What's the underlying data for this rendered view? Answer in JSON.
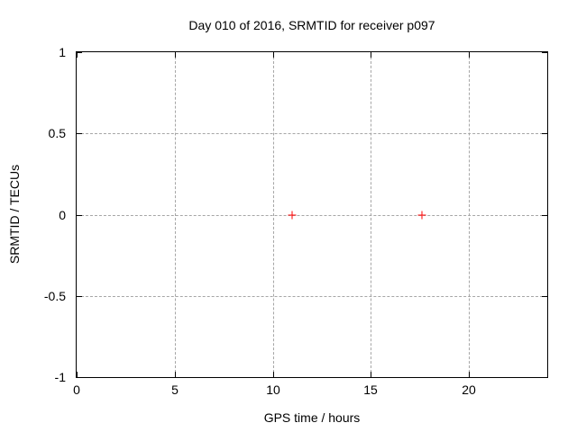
{
  "window": {
    "background": "#ffffff"
  },
  "chart_data": {
    "type": "scatter",
    "title": "Day 010 of 2016, SRMTID for receiver p097",
    "xlabel": "GPS time / hours",
    "ylabel": "SRMTID / TECUs",
    "xlim": [
      0,
      24
    ],
    "ylim": [
      -1,
      1
    ],
    "xticks": [
      {
        "value": 0,
        "label": "0"
      },
      {
        "value": 5,
        "label": "5"
      },
      {
        "value": 10,
        "label": "10"
      },
      {
        "value": 15,
        "label": "15"
      },
      {
        "value": 20,
        "label": "20"
      }
    ],
    "yticks": [
      {
        "value": -1,
        "label": "-1"
      },
      {
        "value": -0.5,
        "label": "-0.5"
      },
      {
        "value": 0,
        "label": "0"
      },
      {
        "value": 0.5,
        "label": "0.5"
      },
      {
        "value": 1,
        "label": "1"
      }
    ],
    "grid": true,
    "legend_position": "none",
    "series": [
      {
        "name": "SRMTID",
        "marker": "plus",
        "color": "#ff0000",
        "points": [
          {
            "x": 11.0,
            "y": 0.0
          },
          {
            "x": 17.6,
            "y": 0.0
          }
        ]
      }
    ]
  },
  "colors": {
    "background": "#ffffff",
    "axis": "#000000",
    "grid": "#a6a6a6",
    "text": "#000000",
    "marker": "#ff0000"
  }
}
